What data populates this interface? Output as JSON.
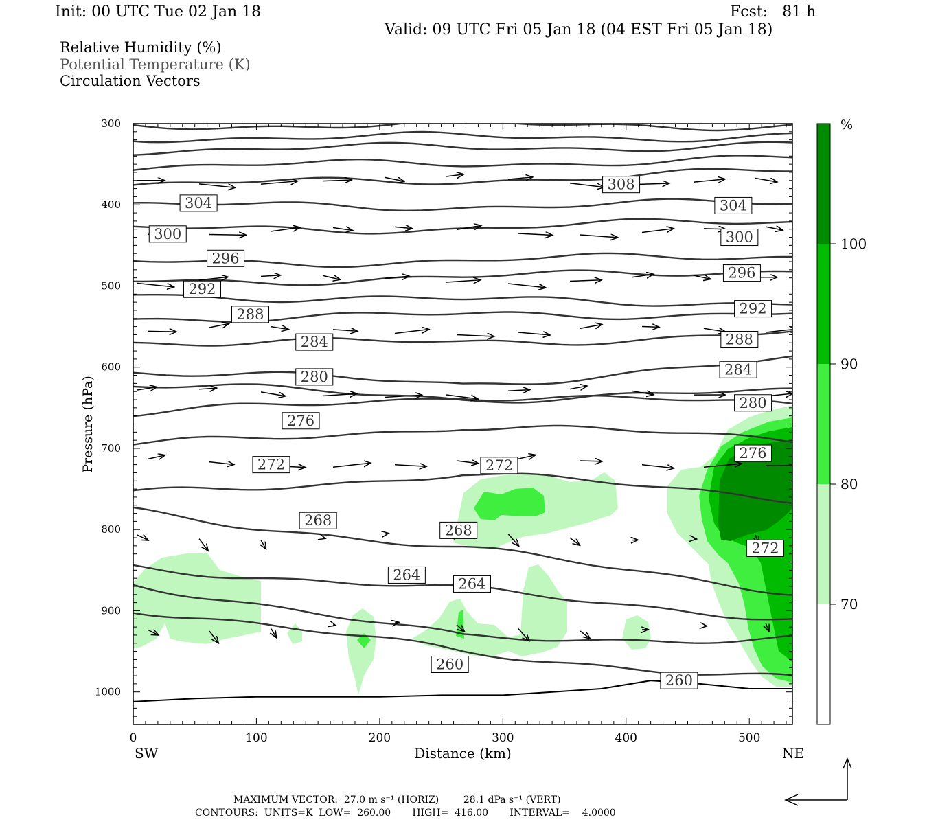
{
  "header": {
    "init": "Init: 00 UTC Tue 02 Jan 18",
    "fcst": "Fcst:   81 h",
    "valid": "Valid: 09 UTC Fri 05 Jan 18 (04 EST Fri 05 Jan 18)"
  },
  "fields": {
    "rh": "Relative Humidity (%)",
    "theta": "Potential Temperature (K)",
    "vectors": "Circulation Vectors"
  },
  "colors": {
    "rh70": "#bff7bf",
    "rh80": "#40ee40",
    "rh90": "#00bb00",
    "rh100": "#008a00",
    "contour": "#333333"
  },
  "chart_data": {
    "type": "cross-section",
    "xlabel": "Distance (km)",
    "ylabel": "Pressure (hPa)",
    "xlim": [
      0,
      535
    ],
    "ylim": [
      1040,
      300
    ],
    "x_ticks": [
      "0",
      "100",
      "200",
      "300",
      "400",
      "500"
    ],
    "y_ticks": [
      "300",
      "400",
      "500",
      "600",
      "700",
      "800",
      "900",
      "1000"
    ],
    "left_end_label": "SW",
    "right_end_label": "NE",
    "colorbar": {
      "unit": "%",
      "levels": [
        "70",
        "80",
        "90",
        "100"
      ]
    },
    "contour_labels": [
      {
        "text": "308",
        "x": 396,
        "p": 375
      },
      {
        "text": "304",
        "x": 53,
        "p": 398
      },
      {
        "text": "304",
        "x": 487,
        "p": 401
      },
      {
        "text": "300",
        "x": 28,
        "p": 436
      },
      {
        "text": "300",
        "x": 492,
        "p": 440
      },
      {
        "text": "296",
        "x": 75,
        "p": 466
      },
      {
        "text": "296",
        "x": 494,
        "p": 484
      },
      {
        "text": "292",
        "x": 56,
        "p": 504
      },
      {
        "text": "292",
        "x": 503,
        "p": 528
      },
      {
        "text": "288",
        "x": 95,
        "p": 535
      },
      {
        "text": "288",
        "x": 492,
        "p": 566
      },
      {
        "text": "284",
        "x": 147,
        "p": 569
      },
      {
        "text": "284",
        "x": 491,
        "p": 603
      },
      {
        "text": "280",
        "x": 147,
        "p": 612
      },
      {
        "text": "280",
        "x": 503,
        "p": 644
      },
      {
        "text": "276",
        "x": 136,
        "p": 666
      },
      {
        "text": "276",
        "x": 503,
        "p": 706
      },
      {
        "text": "272",
        "x": 112,
        "p": 720
      },
      {
        "text": "272",
        "x": 297,
        "p": 721
      },
      {
        "text": "272",
        "x": 513,
        "p": 823
      },
      {
        "text": "268",
        "x": 150,
        "p": 789
      },
      {
        "text": "268",
        "x": 264,
        "p": 801
      },
      {
        "text": "264",
        "x": 222,
        "p": 856
      },
      {
        "text": "264",
        "x": 275,
        "p": 867
      },
      {
        "text": "260",
        "x": 257,
        "p": 966
      },
      {
        "text": "260",
        "x": 443,
        "p": 986
      }
    ],
    "surface_pressure": [
      {
        "x": 0,
        "p": 1012
      },
      {
        "x": 50,
        "p": 1008
      },
      {
        "x": 100,
        "p": 1006
      },
      {
        "x": 150,
        "p": 1006
      },
      {
        "x": 200,
        "p": 1006
      },
      {
        "x": 250,
        "p": 1004
      },
      {
        "x": 300,
        "p": 1004
      },
      {
        "x": 340,
        "p": 1000
      },
      {
        "x": 380,
        "p": 996
      },
      {
        "x": 420,
        "p": 986
      },
      {
        "x": 460,
        "p": 990
      },
      {
        "x": 500,
        "p": 996
      },
      {
        "x": 535,
        "p": 996
      }
    ]
  },
  "footer": {
    "max_vector": "MAXIMUM VECTOR:  27.0 m s⁻¹ (HORIZ)        28.1 dPa s⁻¹ (VERT)",
    "contours": "CONTOURS:  UNITS=K  LOW=  260.00       HIGH=  416.00       INTERVAL=    4.0000"
  }
}
